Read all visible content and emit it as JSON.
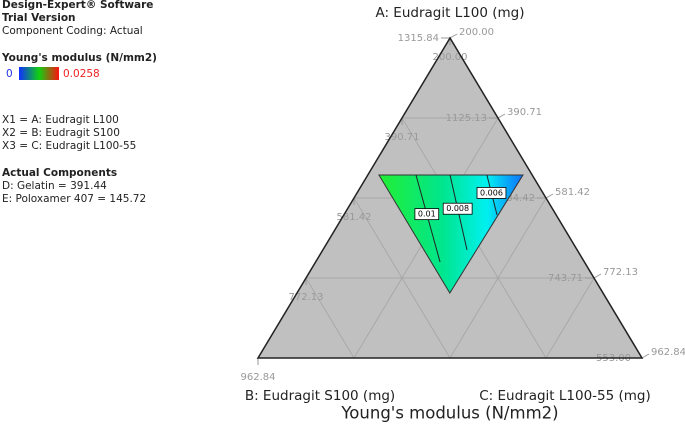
{
  "chart_data": {
    "type": "ternary",
    "title": "Young's modulus (N/mm2)",
    "header": [
      "Design-Expert® Software",
      "Trial Version",
      "Component Coding: Actual"
    ],
    "legend_title": "Young's modulus (N/mm2)",
    "colorbar": {
      "min": 0,
      "max": 0.0258
    },
    "factors": [
      "X1 = A: Eudragit L100",
      "X2 = B: Eudragit S100",
      "X3 = C: Eudragit L100-55"
    ],
    "actual_components_title": "Actual Components",
    "actual_components": [
      "D: Gelatin = 391.44",
      "E: Poloxamer 407 = 145.72"
    ],
    "axes": {
      "a": {
        "label": "A: Eudragit L100 (mg)",
        "lim": [
          553,
          1315.84
        ],
        "ticks": [
          {
            "value": 553,
            "label": "553.00"
          },
          743.71,
          934.42,
          1125.13,
          1315.84
        ]
      },
      "b": {
        "label": "B: Eudragit S100 (mg)",
        "lim": [
          200,
          962.84
        ],
        "ticks": [
          {
            "value": 200,
            "label": "200.00"
          },
          390.71,
          581.42,
          772.13,
          962.84
        ]
      },
      "c": {
        "label": "C: Eudragit L100-55 (mg)",
        "lim": [
          200,
          962.84
        ],
        "ticks": [
          {
            "value": 200,
            "label": "200.00"
          },
          390.71,
          581.42,
          772.13,
          962.84
        ]
      }
    },
    "region": {
      "a": [
        989.3,
        989.3,
        707.9
      ],
      "c": [
        222.1,
        508.2,
        503.6
      ]
    },
    "contours": [
      {
        "level": 0.01,
        "a": [
          989.3,
          781.9
        ],
        "c": [
          295.7,
          447.2
        ]
      },
      {
        "level": 0.008,
        "a": [
          989.3,
          810.5
        ],
        "c": [
          363.3,
          486.5
        ]
      },
      {
        "level": 0.006,
        "a": [
          989.3,
          894.0
        ],
        "c": [
          436.6,
          504.4
        ]
      }
    ]
  }
}
